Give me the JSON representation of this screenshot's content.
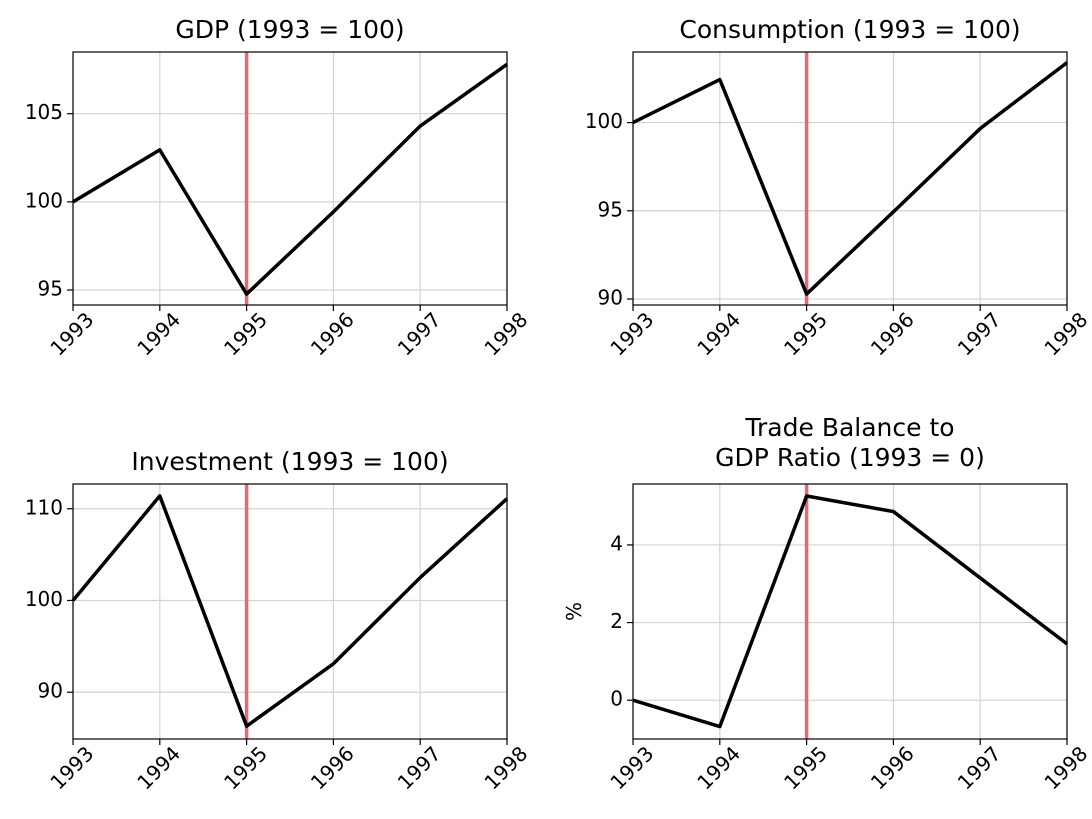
{
  "chart_data": [
    {
      "type": "line",
      "title": "GDP (1993 = 100)",
      "x": [
        1993,
        1994,
        1995,
        1996,
        1997,
        1998
      ],
      "values": [
        100,
        102.95,
        94.77,
        99.43,
        104.3,
        107.8
      ],
      "color": "#000000",
      "xlim": [
        1993,
        1998
      ],
      "xticks": [
        1993,
        1994,
        1995,
        1996,
        1997,
        1998
      ],
      "ylim": [
        94.15,
        108.5
      ],
      "yticks": [
        95,
        100,
        105
      ],
      "grid": true,
      "vline": 1995,
      "vline_color": "#e8696b"
    },
    {
      "type": "line",
      "title": "Consumption (1993 = 100)",
      "x": [
        1993,
        1994,
        1995,
        1996,
        1997,
        1998
      ],
      "values": [
        100,
        102.44,
        90.28,
        94.94,
        99.66,
        103.4
      ],
      "color": "#000000",
      "xlim": [
        1993,
        1998
      ],
      "xticks": [
        1993,
        1994,
        1995,
        1996,
        1997,
        1998
      ],
      "ylim": [
        89.66,
        104.0
      ],
      "yticks": [
        90,
        95,
        100
      ],
      "grid": true,
      "vline": 1995,
      "vline_color": "#e8696b"
    },
    {
      "type": "line",
      "title": "Investment (1993 = 100)",
      "x": [
        1993,
        1994,
        1995,
        1996,
        1997,
        1998
      ],
      "values": [
        100,
        111.4,
        86.3,
        93.1,
        102.5,
        111.1
      ],
      "color": "#000000",
      "xlim": [
        1993,
        1998
      ],
      "xticks": [
        1993,
        1994,
        1995,
        1996,
        1997,
        1998
      ],
      "ylim": [
        84.9,
        112.7
      ],
      "yticks": [
        90,
        100,
        110
      ],
      "grid": true,
      "vline": 1995,
      "vline_color": "#e8696b"
    },
    {
      "type": "line",
      "title": "Trade Balance to\nGDP Ratio (1993  = 0)",
      "ylabel": "%",
      "x": [
        1993,
        1994,
        1995,
        1996,
        1997,
        1998
      ],
      "values": [
        0,
        -0.68,
        5.26,
        4.86,
        3.15,
        1.45
      ],
      "color": "#000000",
      "xlim": [
        1993,
        1998
      ],
      "xticks": [
        1993,
        1994,
        1995,
        1996,
        1997,
        1998
      ],
      "ylim": [
        -1.0,
        5.57
      ],
      "yticks": [
        0,
        2,
        4
      ],
      "grid": true,
      "vline": 1995,
      "vline_color": "#e8696b"
    }
  ]
}
